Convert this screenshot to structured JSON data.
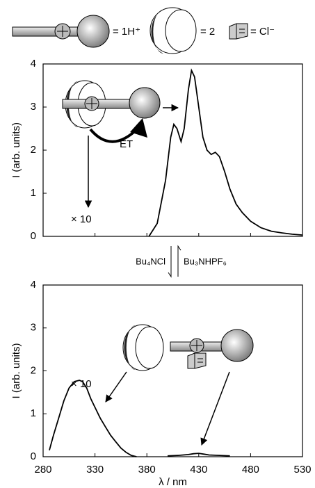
{
  "legend": {
    "items": [
      "= 1H⁺",
      "= 2",
      "= Cl⁻"
    ]
  },
  "equilibrium": {
    "forward": "Bu₄NCl",
    "backward": "Bu₃NHPF₆"
  },
  "chart_data": [
    {
      "type": "line",
      "ylabel": "I (arb. units)",
      "annotations": [
        "× 10",
        "ET"
      ],
      "xlim": [
        280,
        530
      ],
      "ylim": [
        0,
        4
      ],
      "yticks": [
        0,
        1,
        2,
        3,
        4
      ],
      "series": [
        {
          "color": "#000000",
          "x": [
            382,
            390,
            398,
            403,
            406,
            409,
            413,
            416,
            420,
            423,
            426,
            430,
            434,
            438,
            442,
            446,
            450,
            455,
            460,
            466,
            472,
            480,
            490,
            500,
            510,
            520,
            530
          ],
          "values": [
            0,
            0.3,
            1.3,
            2.3,
            2.6,
            2.5,
            2.2,
            2.5,
            3.4,
            3.85,
            3.7,
            3.0,
            2.3,
            2.0,
            1.9,
            1.95,
            1.85,
            1.5,
            1.1,
            0.75,
            0.55,
            0.35,
            0.2,
            0.12,
            0.08,
            0.05,
            0.03
          ]
        }
      ]
    },
    {
      "type": "line",
      "ylabel": "I (arb. units)",
      "xlabel": "λ / nm",
      "annotations": [
        "× 10"
      ],
      "xlim": [
        280,
        530
      ],
      "xticks": [
        280,
        330,
        380,
        430,
        480,
        530
      ],
      "ylim": [
        0,
        4
      ],
      "yticks": [
        0,
        1,
        2,
        3,
        4
      ],
      "series": [
        {
          "color": "#000000",
          "x": [
            286,
            290,
            295,
            300,
            305,
            310,
            315,
            318,
            322,
            326,
            330,
            335,
            340,
            345,
            350,
            355,
            360,
            365,
            370,
            380,
            400,
            410,
            420,
            425,
            430,
            435,
            440,
            450,
            460
          ],
          "values": [
            0.15,
            0.5,
            0.9,
            1.3,
            1.6,
            1.75,
            1.78,
            1.75,
            1.6,
            1.35,
            1.15,
            0.9,
            0.7,
            0.5,
            0.35,
            0.2,
            0.1,
            0.03,
            0,
            null,
            0.02,
            0.03,
            0.05,
            0.07,
            0.08,
            0.06,
            0.04,
            0.03,
            0.02
          ]
        }
      ]
    }
  ]
}
